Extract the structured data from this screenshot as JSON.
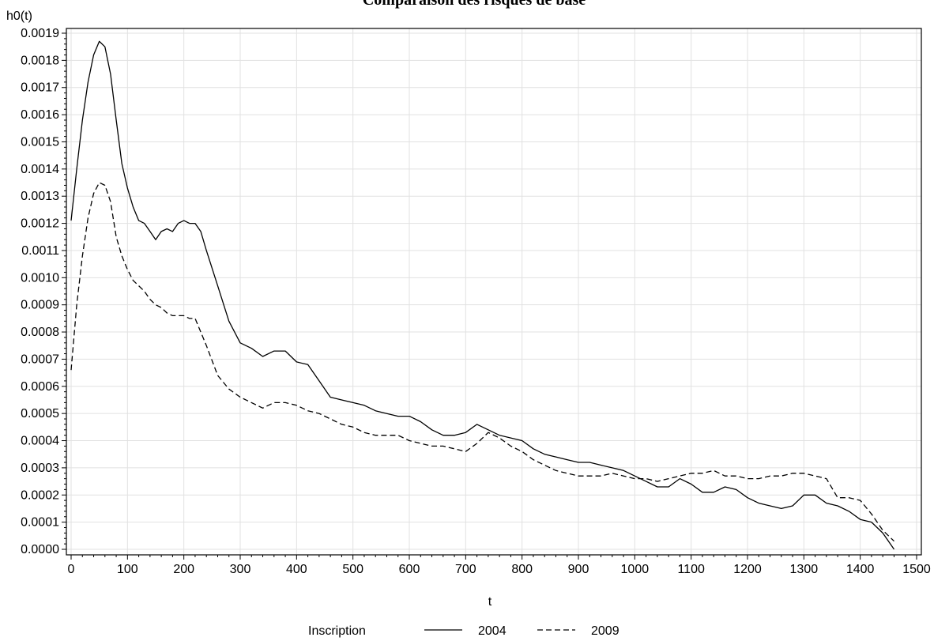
{
  "chart_data": {
    "type": "line",
    "title": "Comparaison des risques de base",
    "xlabel": "t",
    "ylabel": "h0(t)",
    "xlim": [
      0,
      1500
    ],
    "ylim": [
      0,
      0.0019
    ],
    "x_ticks": [
      "0",
      "100",
      "200",
      "300",
      "400",
      "500",
      "600",
      "700",
      "800",
      "900",
      "1000",
      "1100",
      "1200",
      "1300",
      "1400",
      "1500"
    ],
    "y_ticks": [
      "0.0000",
      "0.0001",
      "0.0002",
      "0.0003",
      "0.0004",
      "0.0005",
      "0.0006",
      "0.0007",
      "0.0008",
      "0.0009",
      "0.0010",
      "0.0011",
      "0.0012",
      "0.0013",
      "0.0014",
      "0.0015",
      "0.0016",
      "0.0017",
      "0.0018",
      "0.0019"
    ],
    "grid": true,
    "legend": {
      "title": "Inscription",
      "placement": "bottom"
    },
    "series": [
      {
        "name": "2004",
        "style": "solid",
        "x": [
          0,
          10,
          20,
          30,
          40,
          50,
          60,
          70,
          80,
          90,
          100,
          110,
          120,
          130,
          140,
          150,
          160,
          170,
          180,
          190,
          200,
          210,
          220,
          230,
          240,
          260,
          280,
          300,
          320,
          340,
          360,
          380,
          400,
          420,
          440,
          460,
          480,
          500,
          520,
          540,
          560,
          580,
          600,
          620,
          640,
          660,
          680,
          700,
          720,
          740,
          760,
          780,
          800,
          820,
          840,
          860,
          880,
          900,
          920,
          940,
          960,
          980,
          1000,
          1020,
          1040,
          1060,
          1080,
          1100,
          1120,
          1140,
          1160,
          1180,
          1200,
          1220,
          1240,
          1260,
          1280,
          1300,
          1320,
          1340,
          1360,
          1380,
          1400,
          1420,
          1440,
          1460
        ],
        "y": [
          0.00121,
          0.0014,
          0.00158,
          0.00172,
          0.00182,
          0.00187,
          0.00185,
          0.00175,
          0.00158,
          0.00142,
          0.00133,
          0.00126,
          0.00121,
          0.0012,
          0.00117,
          0.00114,
          0.00117,
          0.00118,
          0.00117,
          0.0012,
          0.00121,
          0.0012,
          0.0012,
          0.00117,
          0.0011,
          0.00097,
          0.00084,
          0.00076,
          0.00074,
          0.00071,
          0.00073,
          0.00073,
          0.00069,
          0.00068,
          0.00062,
          0.00056,
          0.00055,
          0.00054,
          0.00053,
          0.00051,
          0.0005,
          0.00049,
          0.00049,
          0.00047,
          0.00044,
          0.00042,
          0.00042,
          0.00043,
          0.00046,
          0.00044,
          0.00042,
          0.00041,
          0.0004,
          0.00037,
          0.00035,
          0.00034,
          0.00033,
          0.00032,
          0.00032,
          0.00031,
          0.0003,
          0.00029,
          0.00027,
          0.00025,
          0.00023,
          0.00023,
          0.00026,
          0.00024,
          0.00021,
          0.00021,
          0.00023,
          0.00022,
          0.00019,
          0.00017,
          0.00016,
          0.00015,
          0.00016,
          0.0002,
          0.0002,
          0.00017,
          0.00016,
          0.00014,
          0.00011,
          0.0001,
          6e-05,
          0.0
        ]
      },
      {
        "name": "2009",
        "style": "dashed",
        "x": [
          0,
          10,
          20,
          30,
          40,
          50,
          60,
          70,
          80,
          90,
          100,
          110,
          120,
          130,
          140,
          150,
          160,
          170,
          180,
          190,
          200,
          210,
          220,
          230,
          240,
          260,
          280,
          300,
          320,
          340,
          360,
          380,
          400,
          420,
          440,
          460,
          480,
          500,
          520,
          540,
          560,
          580,
          600,
          620,
          640,
          660,
          680,
          700,
          720,
          740,
          760,
          780,
          800,
          820,
          840,
          860,
          880,
          900,
          920,
          940,
          960,
          980,
          1000,
          1020,
          1040,
          1060,
          1080,
          1100,
          1120,
          1140,
          1160,
          1180,
          1200,
          1220,
          1240,
          1260,
          1280,
          1300,
          1320,
          1340,
          1360,
          1380,
          1400,
          1420,
          1440,
          1460
        ],
        "y": [
          0.00066,
          0.0009,
          0.00108,
          0.00122,
          0.00131,
          0.00135,
          0.00134,
          0.00128,
          0.00115,
          0.00108,
          0.00103,
          0.00099,
          0.00097,
          0.00095,
          0.00092,
          0.0009,
          0.00089,
          0.00087,
          0.00086,
          0.00086,
          0.00086,
          0.00085,
          0.00085,
          0.0008,
          0.00075,
          0.00064,
          0.00059,
          0.00056,
          0.00054,
          0.00052,
          0.00054,
          0.00054,
          0.00053,
          0.00051,
          0.0005,
          0.00048,
          0.00046,
          0.00045,
          0.00043,
          0.00042,
          0.00042,
          0.00042,
          0.0004,
          0.00039,
          0.00038,
          0.00038,
          0.00037,
          0.00036,
          0.00039,
          0.00043,
          0.00041,
          0.00038,
          0.00036,
          0.00033,
          0.00031,
          0.00029,
          0.00028,
          0.00027,
          0.00027,
          0.00027,
          0.00028,
          0.00027,
          0.00026,
          0.00026,
          0.00025,
          0.00026,
          0.00027,
          0.00028,
          0.00028,
          0.00029,
          0.00027,
          0.00027,
          0.00026,
          0.00026,
          0.00027,
          0.00027,
          0.00028,
          0.00028,
          0.00027,
          0.00026,
          0.00019,
          0.00019,
          0.00018,
          0.00013,
          7e-05,
          3e-05
        ]
      }
    ]
  }
}
